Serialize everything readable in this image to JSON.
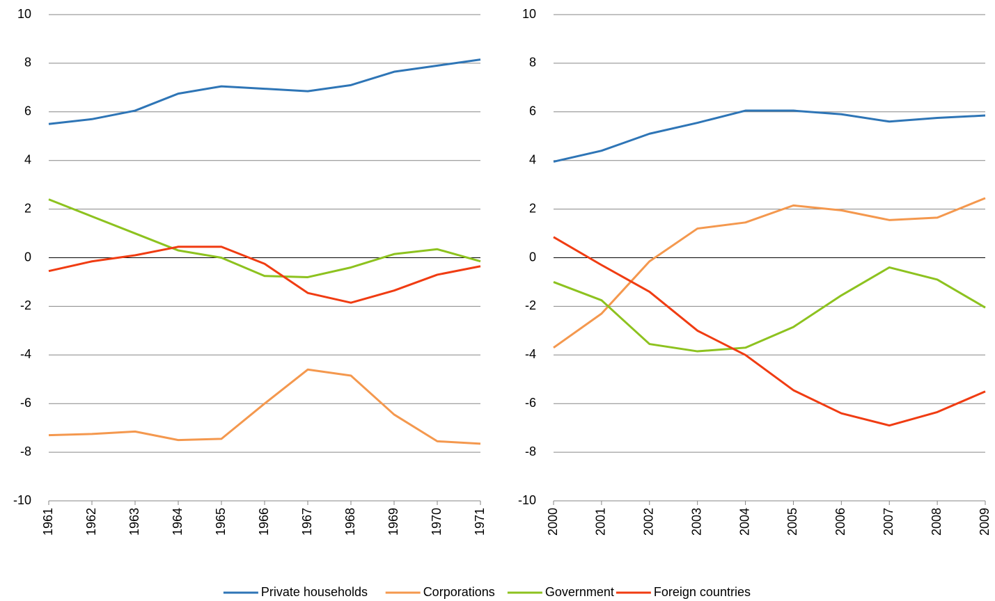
{
  "chart_data": [
    {
      "type": "line",
      "categories": [
        "1961",
        "1962",
        "1963",
        "1964",
        "1965",
        "1966",
        "1967",
        "1968",
        "1969",
        "1970",
        "1971"
      ],
      "series": [
        {
          "name": "Private households",
          "color": "#2e75b6",
          "values": [
            5.5,
            5.7,
            6.05,
            6.75,
            7.05,
            6.95,
            6.85,
            7.1,
            7.65,
            7.9,
            8.15
          ]
        },
        {
          "name": "Corporations",
          "color": "#f4984e",
          "values": [
            -7.3,
            -7.25,
            -7.15,
            -7.5,
            -7.45,
            -6.0,
            -4.6,
            -4.85,
            -6.45,
            -7.55,
            -7.65
          ]
        },
        {
          "name": "Government",
          "color": "#8dc21f",
          "values": [
            2.4,
            1.7,
            1.0,
            0.3,
            0.0,
            -0.75,
            -0.8,
            -0.4,
            0.15,
            0.35,
            -0.15
          ]
        },
        {
          "name": "Foreign countries",
          "color": "#f03c12",
          "values": [
            -0.55,
            -0.15,
            0.1,
            0.45,
            0.45,
            -0.25,
            -1.45,
            -1.85,
            -1.35,
            -0.7,
            -0.35
          ]
        }
      ],
      "ylim": [
        -10,
        10
      ],
      "yticks": [
        -10,
        -8,
        -6,
        -4,
        -2,
        0,
        2,
        4,
        6,
        8,
        10
      ],
      "grid": true
    },
    {
      "type": "line",
      "categories": [
        "2000",
        "2001",
        "2002",
        "2003",
        "2004",
        "2005",
        "2006",
        "2007",
        "2008",
        "2009"
      ],
      "series": [
        {
          "values": [
            3.95,
            4.4,
            5.1,
            5.55,
            6.05,
            6.05,
            5.9,
            5.6,
            5.75,
            5.85
          ]
        },
        {
          "values": [
            -3.7,
            -2.3,
            -0.15,
            1.2,
            1.45,
            2.15,
            1.95,
            1.55,
            1.65,
            2.45
          ]
        },
        {
          "values": [
            -1.0,
            -1.75,
            -3.55,
            -3.85,
            -3.7,
            -2.85,
            -1.55,
            -0.4,
            -0.9,
            -2.05
          ]
        },
        {
          "values": [
            0.85,
            -0.3,
            -1.4,
            -3.0,
            -4.0,
            -5.45,
            -6.4,
            -6.9,
            -6.35,
            -5.5
          ]
        }
      ],
      "ylim": [
        -10,
        10
      ],
      "yticks": [
        -10,
        -8,
        -6,
        -4,
        -2,
        0,
        2,
        4,
        6,
        8,
        10
      ],
      "grid": true
    }
  ]
}
